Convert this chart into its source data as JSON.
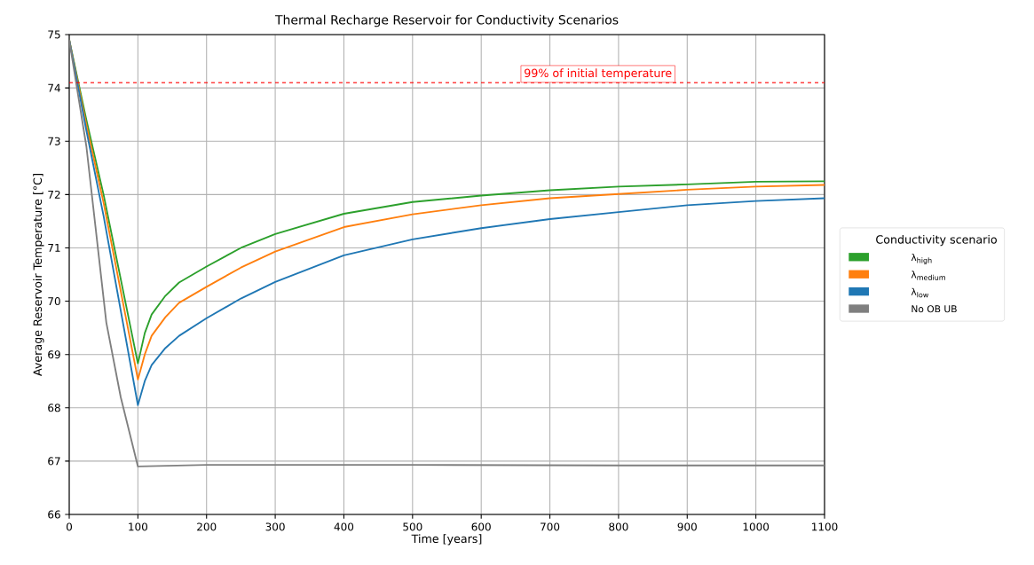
{
  "chart_data": {
    "type": "line",
    "title": "Thermal Recharge Reservoir for Conductivity Scenarios",
    "xlabel": "Time [years]",
    "ylabel": "Average Reservoir Temperature [°C]",
    "legend_title": "Conductivity scenario",
    "legend": "right",
    "grid": true,
    "xlim": [
      0,
      1100
    ],
    "ylim": [
      66,
      75
    ],
    "xticks": [
      0,
      100,
      200,
      300,
      400,
      500,
      600,
      700,
      800,
      900,
      1000,
      1100
    ],
    "yticks": [
      66,
      67,
      68,
      69,
      70,
      71,
      72,
      73,
      74,
      75
    ],
    "ref_lines": [
      {
        "axis": "y",
        "value": 74.1,
        "label": "99% of initial temperature",
        "color": "#ff0000",
        "line_style": "dashed"
      }
    ],
    "series": [
      {
        "name": "λ$_{high}$",
        "color": "#2ca02c",
        "x": [
          0,
          25,
          50,
          100,
          110,
          120,
          140,
          160,
          200,
          250,
          300,
          400,
          500,
          600,
          700,
          800,
          900,
          1000,
          1100
        ],
        "values": [
          74.9,
          73.4,
          72.0,
          68.83,
          69.4,
          69.75,
          70.1,
          70.35,
          70.65,
          71.0,
          71.26,
          71.64,
          71.86,
          71.98,
          72.08,
          72.15,
          72.19,
          72.24,
          72.25
        ]
      },
      {
        "name": "λ$_{medium}$",
        "color": "#ff7f0e",
        "x": [
          0,
          25,
          50,
          100,
          110,
          120,
          140,
          160,
          200,
          250,
          300,
          400,
          500,
          600,
          700,
          800,
          900,
          1000,
          1100
        ],
        "values": [
          74.9,
          73.3,
          71.85,
          68.53,
          69.0,
          69.35,
          69.7,
          69.97,
          70.27,
          70.63,
          70.93,
          71.39,
          71.63,
          71.8,
          71.93,
          72.01,
          72.09,
          72.15,
          72.18
        ]
      },
      {
        "name": "λ$_{low}$",
        "color": "#1f77b4",
        "x": [
          0,
          25,
          50,
          100,
          110,
          120,
          140,
          160,
          200,
          250,
          300,
          400,
          500,
          600,
          700,
          800,
          900,
          1000,
          1100
        ],
        "values": [
          74.9,
          73.2,
          71.6,
          68.05,
          68.5,
          68.8,
          69.12,
          69.35,
          69.68,
          70.05,
          70.36,
          70.86,
          71.16,
          71.37,
          71.54,
          71.67,
          71.8,
          71.88,
          71.93
        ]
      },
      {
        "name": "No OB UB",
        "color": "#7f7f7f",
        "x": [
          0,
          25,
          54,
          75,
          100,
          200,
          500,
          800,
          1100
        ],
        "values": [
          74.9,
          72.9,
          69.6,
          68.2,
          66.9,
          66.93,
          66.93,
          66.92,
          66.92
        ]
      }
    ]
  }
}
